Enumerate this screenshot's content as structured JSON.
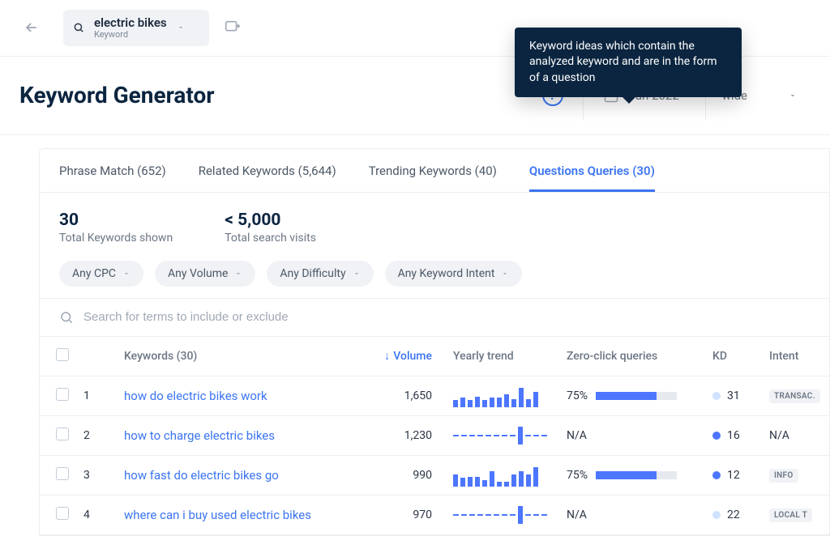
{
  "topbar": {
    "keyword": "electric bikes",
    "keyword_sub": "Keyword"
  },
  "header": {
    "title": "Keyword Generator",
    "date_range": "Jun 2022 -",
    "region": "wide"
  },
  "tooltip": {
    "text": "Keyword ideas which contain the analyzed keyword and are in the form of a question"
  },
  "tabs": [
    {
      "label": "Phrase Match (652)",
      "active": false
    },
    {
      "label": "Related Keywords (5,644)",
      "active": false
    },
    {
      "label": "Trending Keywords (40)",
      "active": false
    },
    {
      "label": "Questions Queries (30)",
      "active": true
    }
  ],
  "stats": {
    "total_keywords_value": "30",
    "total_keywords_label": "Total Keywords shown",
    "search_visits_value": "< 5,000",
    "search_visits_label": "Total search visits"
  },
  "filters": [
    {
      "label": "Any CPC"
    },
    {
      "label": "Any Volume"
    },
    {
      "label": "Any Difficulty"
    },
    {
      "label": "Any Keyword Intent"
    }
  ],
  "search": {
    "placeholder": "Search for terms to include or exclude"
  },
  "table": {
    "columns": {
      "keywords": "Keywords (30)",
      "volume": "Volume",
      "trend": "Yearly trend",
      "zero_click": "Zero-click queries",
      "kd": "KD",
      "intent": "Intent"
    },
    "rows": [
      {
        "idx": "1",
        "keyword": "how do electric bikes work",
        "volume": "1,650",
        "trend_type": "bars",
        "trend_values": [
          35,
          45,
          35,
          50,
          35,
          45,
          45,
          60,
          38,
          90,
          38,
          70
        ],
        "zc_value": "75%",
        "zc_pct": 75,
        "kd": "31",
        "kd_color": "#cfe2ff",
        "intent": "TRANSAC."
      },
      {
        "idx": "2",
        "keyword": "how to charge electric bikes",
        "volume": "1,230",
        "trend_type": "dashed",
        "trend_values": [],
        "zc_value": "N/A",
        "zc_pct": 0,
        "kd": "16",
        "kd_color": "#4d76ff",
        "intent": "N/A",
        "intent_plain": true
      },
      {
        "idx": "3",
        "keyword": "how fast do electric bikes go",
        "volume": "990",
        "trend_type": "bars",
        "trend_values": [
          55,
          40,
          45,
          45,
          30,
          70,
          22,
          22,
          55,
          70,
          55,
          90
        ],
        "zc_value": "75%",
        "zc_pct": 75,
        "kd": "12",
        "kd_color": "#4d76ff",
        "intent": "INFO"
      },
      {
        "idx": "4",
        "keyword": "where can i buy used electric bikes",
        "volume": "970",
        "trend_type": "dashed",
        "trend_values": [],
        "zc_value": "N/A",
        "zc_pct": 0,
        "kd": "22",
        "kd_color": "#cfe2ff",
        "intent": "LOCAL  T"
      }
    ]
  },
  "colors": {
    "accent": "#3b74f2",
    "bar": "#4d76ff",
    "tooltip_bg": "#0b2540",
    "text_primary": "#0b2540",
    "text_muted": "#6b7684",
    "border": "#eceef0",
    "pill_bg": "#f0f2f5",
    "zc_bg": "#e6e9ee"
  }
}
